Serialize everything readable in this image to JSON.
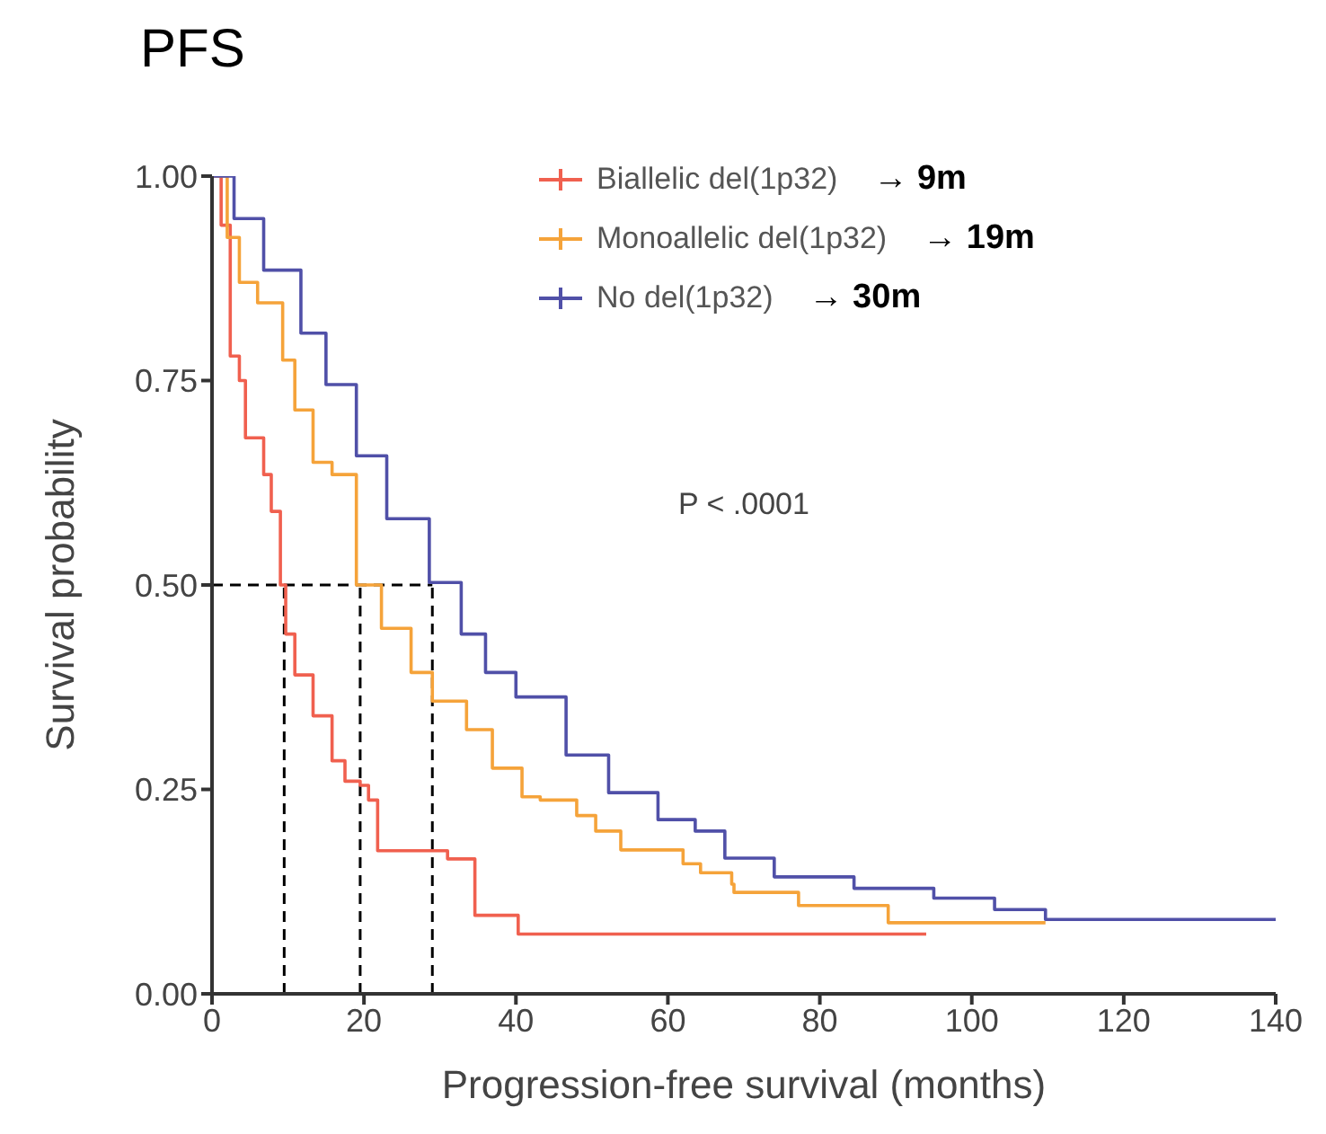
{
  "chart_data": {
    "type": "step",
    "title": "PFS",
    "xlabel": "Progression-free survival (months)",
    "ylabel": "Survival probability",
    "xlim": [
      0,
      140
    ],
    "xticks": [
      0,
      20,
      40,
      60,
      80,
      100,
      120,
      140
    ],
    "ylim": [
      0,
      1
    ],
    "yticks": [
      {
        "value": 0,
        "label": "0.00"
      },
      {
        "value": 0.25,
        "label": "0.25"
      },
      {
        "value": 0.5,
        "label": "0.50"
      },
      {
        "value": 0.75,
        "label": "0.75"
      },
      {
        "value": 1,
        "label": "1.00"
      }
    ],
    "legend": "top",
    "grid": false,
    "series": [
      {
        "name": "Biallelic del(1p32)",
        "color": "#f0604f",
        "x": [
          0,
          1.2,
          2.4,
          3.6,
          4.4,
          6.8,
          7.8,
          9,
          9.7,
          10.9,
          13.3,
          15.8,
          17.5,
          19.5,
          20.6,
          21.8,
          31,
          34.6,
          40.3,
          94
        ],
        "values": [
          1,
          0.94,
          0.78,
          0.75,
          0.68,
          0.635,
          0.59,
          0.5,
          0.44,
          0.39,
          0.34,
          0.285,
          0.26,
          0.255,
          0.237,
          0.175,
          0.165,
          0.096,
          0.073,
          0.073
        ]
      },
      {
        "name": "Monoallelic del(1p32)",
        "color": "#f5a33a",
        "x": [
          0,
          2,
          3.6,
          6,
          9.3,
          10.9,
          13.3,
          15.8,
          19,
          22.3,
          26.2,
          29,
          33.5,
          36.9,
          40.8,
          43.2,
          48,
          50.5,
          53.8,
          62,
          64.3,
          68.4,
          68.7,
          77.2,
          89,
          109.7
        ],
        "values": [
          1,
          0.925,
          0.87,
          0.845,
          0.775,
          0.714,
          0.65,
          0.635,
          0.5,
          0.447,
          0.393,
          0.358,
          0.323,
          0.276,
          0.241,
          0.237,
          0.218,
          0.199,
          0.176,
          0.159,
          0.148,
          0.134,
          0.124,
          0.108,
          0.087,
          0.087
        ]
      },
      {
        "name": "No del(1p32)",
        "color": "#5050a8",
        "x": [
          0,
          2.9,
          6.8,
          11.7,
          15,
          19,
          23,
          28.6,
          32.8,
          36,
          40,
          46.6,
          52.2,
          58.7,
          63.6,
          67.5,
          74,
          84.5,
          95,
          103,
          109.7,
          140
        ],
        "values": [
          1,
          0.948,
          0.885,
          0.808,
          0.745,
          0.658,
          0.581,
          0.503,
          0.44,
          0.393,
          0.363,
          0.292,
          0.246,
          0.213,
          0.199,
          0.166,
          0.143,
          0.129,
          0.117,
          0.103,
          0.091,
          0.091
        ]
      }
    ],
    "ref_lines": [
      {
        "axis": "y",
        "value": 0.5,
        "color": "#000000",
        "line_style": "dashed"
      },
      {
        "axis": "x",
        "value": 9.5,
        "color": "#000000",
        "line_style": "dashed"
      },
      {
        "axis": "x",
        "value": 19.5,
        "color": "#000000",
        "line_style": "dashed"
      },
      {
        "axis": "x",
        "value": 29,
        "color": "#000000",
        "line_style": "dashed"
      }
    ],
    "annotations": [
      "→ 9m",
      "→ 19m",
      "→ 30m",
      "P < .0001"
    ]
  }
}
